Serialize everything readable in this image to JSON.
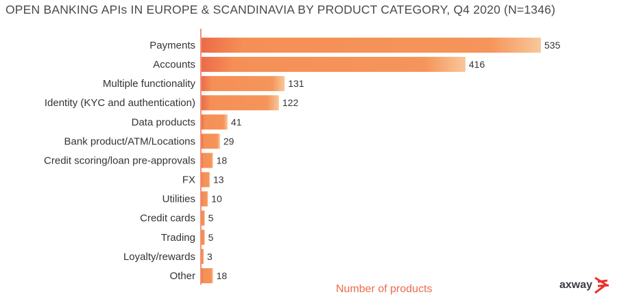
{
  "chart_data": {
    "type": "bar",
    "orientation": "horizontal",
    "title": "OPEN BANKING APIs IN EUROPE & SCANDINAVIA BY PRODUCT CATEGORY, Q4 2020 (N=1346)",
    "xlabel": "Number of products",
    "ylabel": "",
    "categories": [
      "Payments",
      "Accounts",
      "Multiple functionality",
      "Identity (KYC and authentication)",
      "Data products",
      "Bank product/ATM/Locations",
      "Credit scoring/loan pre-approvals",
      "FX",
      "Utilities",
      "Credit cards",
      "Trading",
      "Loyalty/rewards",
      "Other"
    ],
    "values": [
      535,
      416,
      131,
      122,
      41,
      29,
      18,
      13,
      10,
      5,
      5,
      3,
      18
    ],
    "xlim": [
      0,
      535
    ],
    "grid": false,
    "colors": {
      "bar_start": "#ec6b4a",
      "bar_mid": "#f58f55",
      "bar_end": "#f8c79a",
      "axis": "#ec6b4a",
      "xlabel": "#ef6a4a"
    }
  },
  "brand": {
    "logo_text": "axway",
    "logo_color": "#e8312c"
  }
}
